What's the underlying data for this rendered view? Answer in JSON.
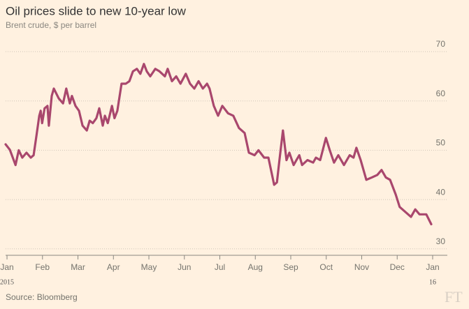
{
  "chart_data": {
    "type": "line",
    "title": "Oil prices slide to new 10-year low",
    "subtitle": "Brent crude, $ per barrel",
    "source": "Source: Bloomberg",
    "logo": "FT",
    "year_labels": [
      "2015",
      "16"
    ],
    "x": [
      -0.04,
      0.08,
      0.24,
      0.33,
      0.43,
      0.55,
      0.67,
      0.75,
      0.83,
      0.91,
      0.95,
      0.99,
      1.06,
      1.14,
      1.18,
      1.26,
      1.32,
      1.46,
      1.58,
      1.67,
      1.77,
      1.83,
      1.93,
      2.03,
      2.13,
      2.25,
      2.33,
      2.42,
      2.52,
      2.6,
      2.7,
      2.76,
      2.84,
      2.96,
      3.03,
      3.11,
      3.23,
      3.35,
      3.45,
      3.55,
      3.66,
      3.76,
      3.86,
      3.94,
      4.04,
      4.18,
      4.3,
      4.45,
      4.53,
      4.65,
      4.77,
      4.89,
      5.04,
      5.16,
      5.28,
      5.4,
      5.52,
      5.64,
      5.71,
      5.83,
      5.95,
      6.07,
      6.23,
      6.38,
      6.54,
      6.7,
      6.82,
      6.98,
      7.09,
      7.25,
      7.37,
      7.53,
      7.61,
      7.68,
      7.78,
      7.88,
      7.96,
      8.08,
      8.16,
      8.24,
      8.32,
      8.47,
      8.63,
      8.71,
      8.83,
      8.99,
      9.1,
      9.22,
      9.34,
      9.5,
      9.66,
      9.77,
      9.85,
      9.97,
      10.13,
      10.29,
      10.44,
      10.56,
      10.68,
      10.8,
      10.96,
      11.07,
      11.23,
      11.39,
      11.51,
      11.63,
      11.82,
      11.96
    ],
    "series": [
      {
        "name": "Brent crude",
        "color": "#a9476d",
        "values": [
          51.2,
          50.1,
          47,
          50,
          48.5,
          49.5,
          48.5,
          49,
          53,
          57,
          58,
          55.5,
          58.5,
          59,
          55,
          61,
          62.5,
          60.5,
          59.5,
          62.5,
          59.5,
          61,
          59,
          58,
          55,
          54,
          56,
          55.5,
          56.5,
          58.5,
          55,
          57,
          55.5,
          59,
          56.5,
          58,
          63.5,
          63.5,
          64,
          66,
          66.5,
          65.5,
          67.5,
          66,
          65,
          66.5,
          66,
          65,
          66.5,
          64,
          65,
          63.5,
          65.5,
          63.5,
          62.5,
          64,
          62.5,
          63.5,
          62.5,
          59,
          57,
          59,
          57.5,
          57,
          54.5,
          53.5,
          49.5,
          49,
          50,
          48.5,
          48.5,
          43,
          43.5,
          48,
          54,
          48,
          49.5,
          47,
          48,
          49,
          47,
          48,
          47.5,
          48.5,
          48,
          52.5,
          50,
          47.5,
          49,
          47,
          49,
          48.5,
          50.5,
          48,
          44,
          44.5,
          45,
          46,
          44.5,
          44,
          41,
          38.5,
          37.5,
          36.5,
          38,
          37,
          37,
          35
        ]
      }
    ],
    "xlim": [
      -0.04,
      12
    ],
    "xticks": [
      {
        "value": 0,
        "label": "Jan"
      },
      {
        "value": 1,
        "label": "Feb"
      },
      {
        "value": 2,
        "label": "Mar"
      },
      {
        "value": 3,
        "label": "Apr"
      },
      {
        "value": 4,
        "label": "May"
      },
      {
        "value": 5,
        "label": "Jun"
      },
      {
        "value": 6,
        "label": "Jul"
      },
      {
        "value": 7,
        "label": "Aug"
      },
      {
        "value": 8,
        "label": "Sep"
      },
      {
        "value": 9,
        "label": "Oct"
      },
      {
        "value": 10,
        "label": "Nov"
      },
      {
        "value": 11,
        "label": "Dec"
      },
      {
        "value": 12,
        "label": "Jan"
      }
    ],
    "ylim": [
      28.7,
      70
    ],
    "yticks": [
      30,
      40,
      50,
      60,
      70
    ],
    "grid": true
  }
}
